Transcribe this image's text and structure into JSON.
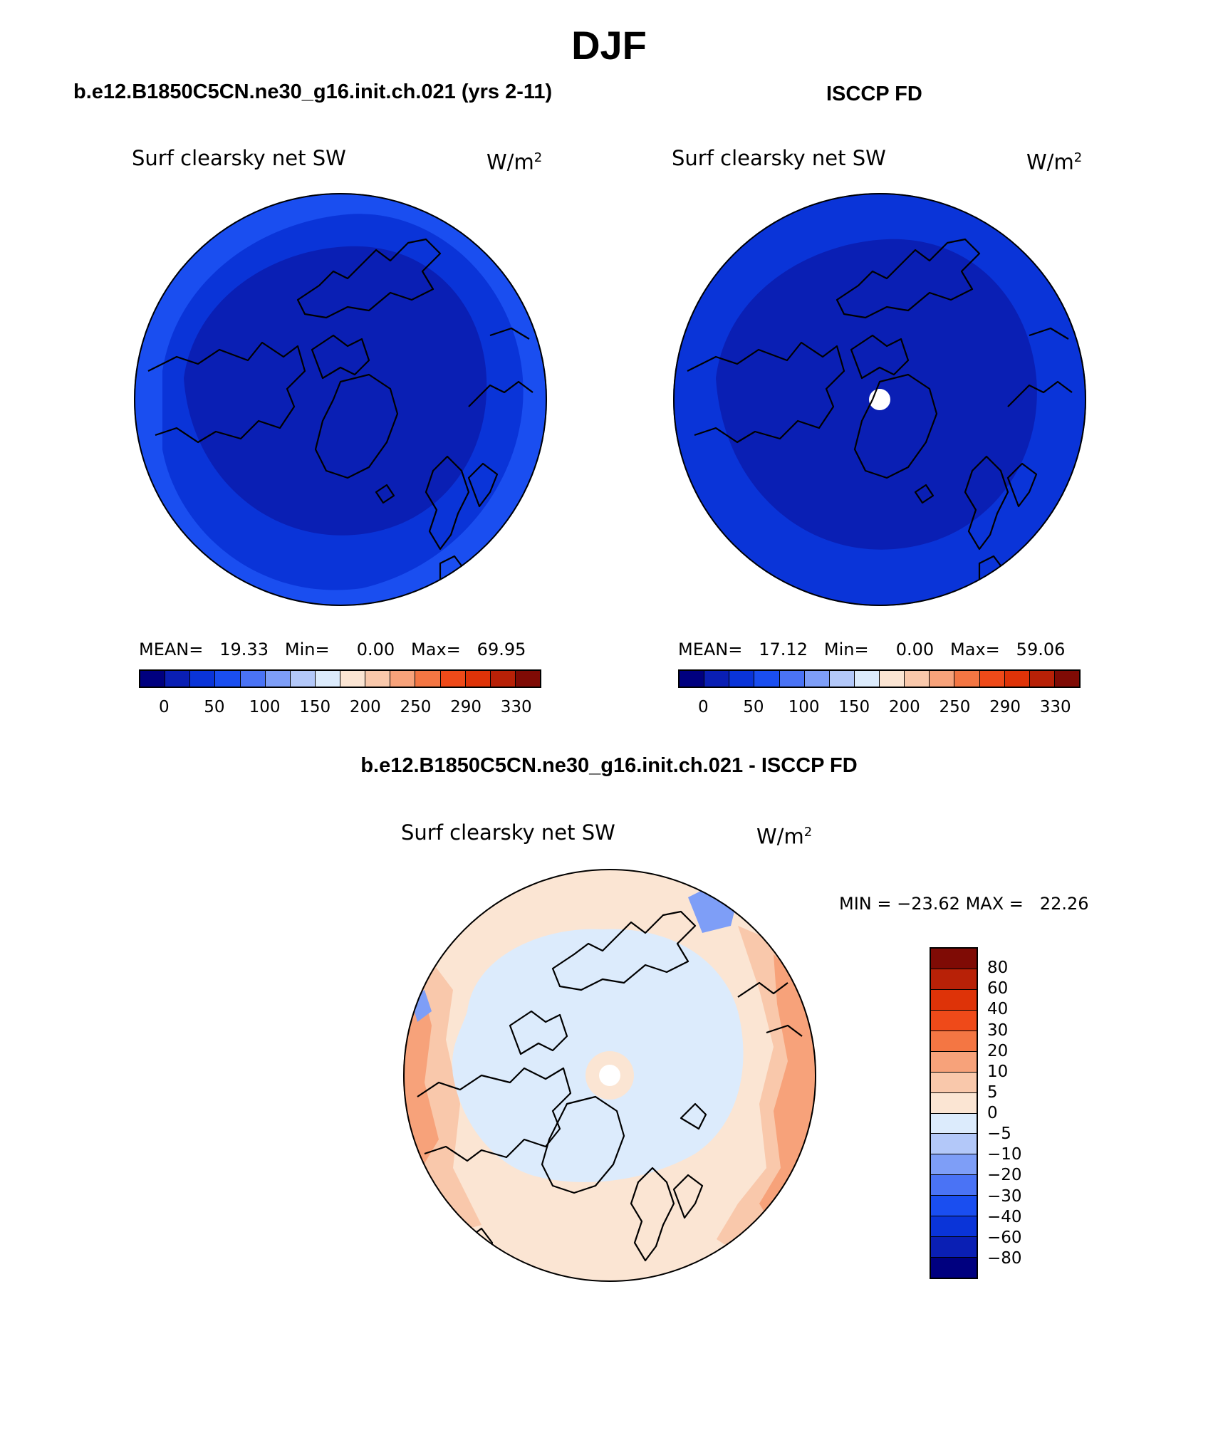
{
  "title": "DJF",
  "panel_top_left": {
    "case_title": "b.e12.B1850C5CN.ne30_g16.init.ch.021 (yrs 2-11)",
    "variable": "Surf clearsky net SW",
    "units": "W/m",
    "units_exp": "2",
    "mean_label": "MEAN=",
    "mean_value": "19.33",
    "min_label": "Min=",
    "min_value": "0.00",
    "max_label": "Max=",
    "max_value": "69.95"
  },
  "panel_top_right": {
    "case_title": "ISCCP FD",
    "variable": "Surf clearsky net SW",
    "units": "W/m",
    "units_exp": "2",
    "mean_label": "MEAN=",
    "mean_value": "17.12",
    "min_label": "Min=",
    "min_value": "0.00",
    "max_label": "Max=",
    "max_value": "59.06"
  },
  "panel_diff": {
    "case_title": "b.e12.B1850C5CN.ne30_g16.init.ch.021 - ISCCP FD",
    "variable": "Surf clearsky net SW",
    "units": "W/m",
    "units_exp": "2",
    "min_label": "MIN =",
    "min_value": "−23.62",
    "max_label": "MAX =",
    "max_value": "22.26"
  },
  "colorbar_abs": {
    "labels": [
      "0",
      "50",
      "100",
      "150",
      "200",
      "250",
      "290",
      "330"
    ],
    "colors": [
      "#00007f",
      "#0a1fb4",
      "#0a34d8",
      "#1a4ef0",
      "#4a73f5",
      "#7e9ef7",
      "#b3c8f9",
      "#dcebfc",
      "#fbe5d3",
      "#f9c8ab",
      "#f7a27a",
      "#f47643",
      "#ef4a19",
      "#de3308",
      "#b82107",
      "#7f0b05"
    ]
  },
  "colorbar_diff": {
    "labels": [
      "80",
      "60",
      "40",
      "30",
      "20",
      "10",
      "5",
      "0",
      "−5",
      "−10",
      "−20",
      "−30",
      "−40",
      "−60",
      "−80"
    ],
    "colors": [
      "#7f0b05",
      "#b82107",
      "#de3308",
      "#ef4a19",
      "#f47643",
      "#f7a27a",
      "#f9c8ab",
      "#fbe5d3",
      "#dcebfc",
      "#b3c8f9",
      "#7e9ef7",
      "#4a73f5",
      "#1a4ef0",
      "#0a34d8",
      "#0a1fb4",
      "#00007f"
    ]
  },
  "colors": {
    "polar_dark": "#0a1fb4",
    "mid_blue": "#0a34d8",
    "outer_blue": "#1a4ef0",
    "diff_light_blue": "#dcebfc",
    "diff_light_orange": "#fbe5d3",
    "diff_mid_orange": "#f9c8ab",
    "diff_orange": "#f7a27a",
    "missing": "#ffffff"
  }
}
